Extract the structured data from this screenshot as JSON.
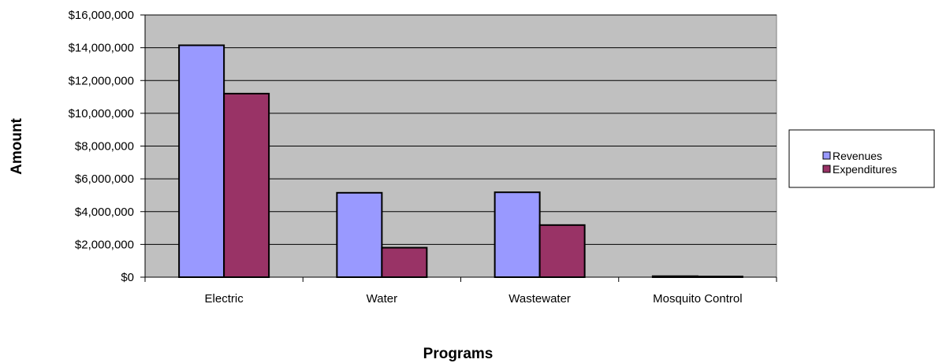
{
  "chart_data": {
    "type": "bar",
    "title": "",
    "xlabel": "Programs",
    "ylabel": "Amount",
    "categories": [
      "Electric",
      "Water",
      "Wastewater",
      "Mosquito Control"
    ],
    "series": [
      {
        "name": "Revenues",
        "values": [
          14150000,
          5150000,
          5180000,
          60000
        ]
      },
      {
        "name": "Expenditures",
        "values": [
          11200000,
          1800000,
          3180000,
          40000
        ]
      }
    ],
    "ylim": [
      0,
      16000000
    ],
    "yticks": [
      0,
      2000000,
      4000000,
      6000000,
      8000000,
      10000000,
      12000000,
      14000000,
      16000000
    ],
    "ytick_labels": [
      "$0",
      "$2,000,000",
      "$4,000,000",
      "$6,000,000",
      "$8,000,000",
      "$10,000,000",
      "$12,000,000",
      "$14,000,000",
      "$16,000,000"
    ],
    "grid": true,
    "legend_position": "right",
    "colors": {
      "plot_background": "#C0C0C0",
      "revenues": "#9999FF",
      "expenditures": "#993366",
      "gridline": "#000000"
    }
  }
}
